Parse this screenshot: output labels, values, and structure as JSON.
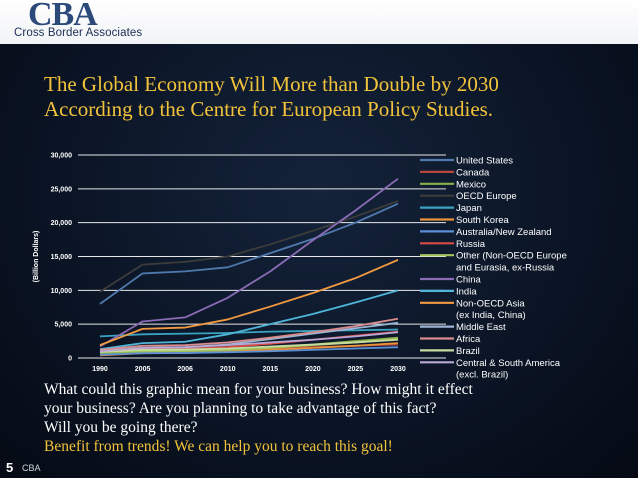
{
  "logo": {
    "mark": "CBA",
    "name": "Cross Border Associates"
  },
  "title_lines": [
    "The Global Economy Will More than Double by 2030",
    "According to the Centre for European Policy Studies."
  ],
  "body_lines": [
    "What could this graphic mean for your business? How might it effect",
    "your business? Are you planning to take advantage of this fact?",
    "Will you be going there?",
    "Benefit from trends! We can help you to reach this goal!"
  ],
  "footer": {
    "page": "5",
    "label": "CBA"
  },
  "chart_data": {
    "type": "line",
    "ylabel": "(Billion Dollars)",
    "xlabel": "",
    "ylim": [
      0,
      30000
    ],
    "yticks": [
      0,
      5000,
      10000,
      15000,
      20000,
      25000,
      30000
    ],
    "ytick_labels": [
      "0",
      "5,000",
      "10,000",
      "15,000",
      "20,000",
      "25,000",
      "30,000"
    ],
    "categories": [
      "1990",
      "2005",
      "2006",
      "2010",
      "2015",
      "2020",
      "2025",
      "2030"
    ],
    "grid": true,
    "legend_position": "right",
    "series": [
      {
        "name": "United States",
        "color": "#4f79ad",
        "values": [
          8000,
          12500,
          12800,
          13400,
          15500,
          17600,
          20000,
          22800
        ]
      },
      {
        "name": "Canada",
        "color": "#b5473f",
        "values": [
          700,
          1000,
          1050,
          1200,
          1400,
          1600,
          1800,
          2000
        ]
      },
      {
        "name": "Mexico",
        "color": "#8ab04a",
        "values": [
          700,
          900,
          950,
          1100,
          1500,
          2000,
          2500,
          3000
        ]
      },
      {
        "name": "OECD Europe",
        "color": "#3c3c3c",
        "values": [
          9800,
          13800,
          14200,
          15000,
          16800,
          18800,
          20900,
          23200
        ]
      },
      {
        "name": "Japan",
        "color": "#3aa3c2",
        "values": [
          3200,
          3500,
          3600,
          3700,
          3900,
          4000,
          4100,
          4200
        ]
      },
      {
        "name": "South Korea",
        "color": "#e8923a",
        "values": [
          400,
          700,
          750,
          900,
          1200,
          1500,
          1800,
          2200
        ]
      },
      {
        "name": "Australia/New Zealand",
        "color": "#5b8fd6",
        "values": [
          500,
          700,
          750,
          850,
          1000,
          1200,
          1400,
          1600
        ]
      },
      {
        "name": "Russia",
        "color": "#d94a45",
        "values": [
          1200,
          1300,
          1350,
          1600,
          2100,
          2700,
          3300,
          3900
        ]
      },
      {
        "name": "Other (Non-OECD Europe and Eurasia, ex-Russia",
        "color": "#a3c55c",
        "values": [
          900,
          1000,
          1050,
          1200,
          1500,
          1900,
          2300,
          2800
        ]
      },
      {
        "name": "China",
        "color": "#8a6bb5",
        "values": [
          1700,
          5400,
          6000,
          8900,
          12800,
          17400,
          21800,
          26500
        ]
      },
      {
        "name": "India",
        "color": "#4fb6d9",
        "values": [
          1300,
          2200,
          2400,
          3500,
          5000,
          6500,
          8200,
          10000
        ]
      },
      {
        "name": "Non-OECD Asia (ex India, China)",
        "color": "#f29b40",
        "values": [
          1900,
          4300,
          4500,
          5700,
          7600,
          9600,
          11800,
          14500
        ]
      },
      {
        "name": "Middle East",
        "color": "#9fb5d6",
        "values": [
          900,
          1500,
          1600,
          2000,
          2800,
          3600,
          4400,
          5200
        ]
      },
      {
        "name": "Africa",
        "color": "#d98c8c",
        "values": [
          1200,
          1800,
          1900,
          2300,
          3000,
          3800,
          4700,
          5800
        ]
      },
      {
        "name": "Brazil",
        "color": "#c7dba0",
        "values": [
          900,
          1200,
          1250,
          1400,
          1700,
          2000,
          2300,
          2700
        ]
      },
      {
        "name": "Central & South America (excl. Brazil)",
        "color": "#b9a8d4",
        "values": [
          1000,
          1500,
          1600,
          1900,
          2300,
          2700,
          3200,
          3800
        ]
      }
    ]
  }
}
